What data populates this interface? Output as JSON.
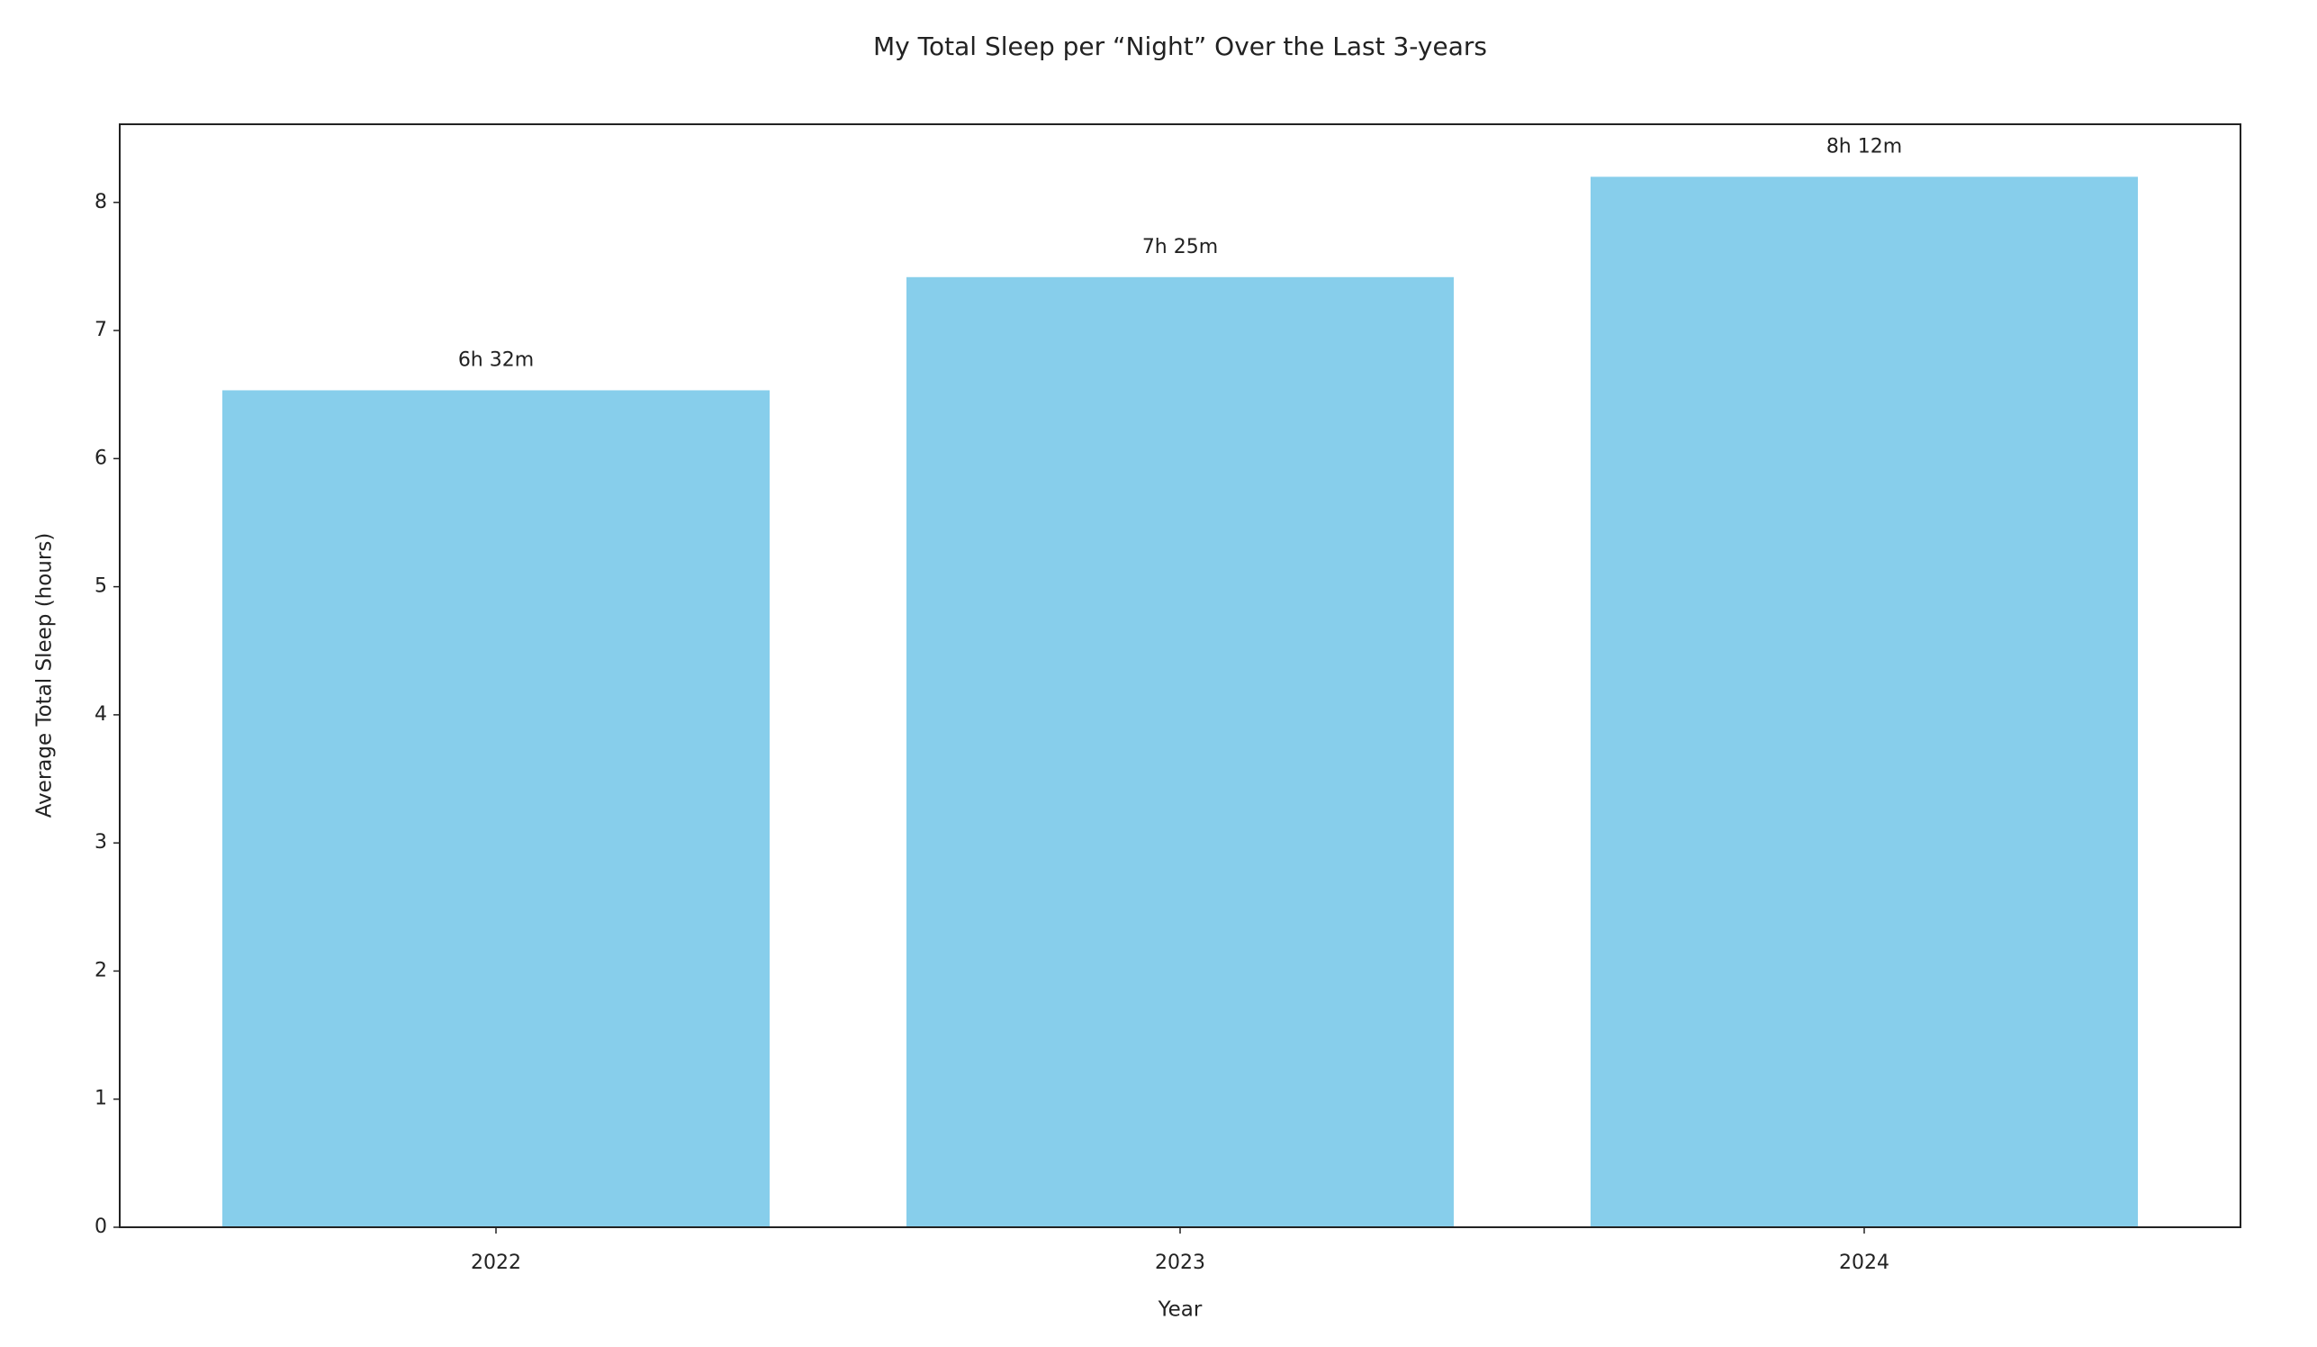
{
  "chart_data": {
    "type": "bar",
    "title": "My Total Sleep per “Night” Over the Last 3-years",
    "x_label": "Year",
    "y_label": "Average Total Sleep (hours)",
    "categories": [
      "2022",
      "2023",
      "2024"
    ],
    "values": [
      6.5333,
      7.4167,
      8.2
    ],
    "value_labels": [
      "6h 32m",
      "7h 25m",
      "8h 12m"
    ],
    "color": "#87ceeb",
    "ylim": [
      0,
      8.61
    ],
    "yticks": [
      0,
      1,
      2,
      3,
      4,
      5,
      6,
      7,
      8
    ],
    "grid": false
  }
}
